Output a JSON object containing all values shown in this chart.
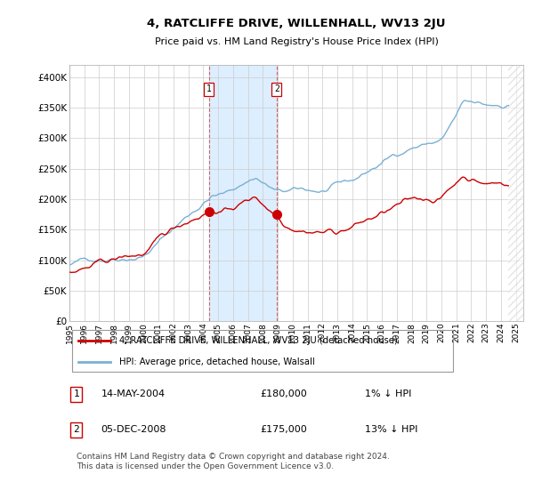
{
  "title": "4, RATCLIFFE DRIVE, WILLENHALL, WV13 2JU",
  "subtitle": "Price paid vs. HM Land Registry's House Price Index (HPI)",
  "xlim_start": 1995.0,
  "xlim_end": 2025.5,
  "ylim": [
    0,
    420000
  ],
  "yticks": [
    0,
    50000,
    100000,
    150000,
    200000,
    250000,
    300000,
    350000,
    400000
  ],
  "ytick_labels": [
    "£0",
    "£50K",
    "£100K",
    "£150K",
    "£200K",
    "£250K",
    "£300K",
    "£350K",
    "£400K"
  ],
  "transaction1_date": 2004.37,
  "transaction1_price": 180000,
  "transaction2_date": 2008.92,
  "transaction2_price": 175000,
  "line_color_property": "#cc0000",
  "line_color_hpi": "#7ab0d4",
  "legend_property": "4, RATCLIFFE DRIVE, WILLENHALL, WV13 2JU (detached house)",
  "legend_hpi": "HPI: Average price, detached house, Walsall",
  "background_color": "#ffffff",
  "grid_color": "#cccccc",
  "shade_color": "#ddeeff",
  "hatch_start": 2024.5,
  "footnote": "Contains HM Land Registry data © Crown copyright and database right 2024.\nThis data is licensed under the Open Government Licence v3.0.",
  "xticks": [
    1995,
    1996,
    1997,
    1998,
    1999,
    2000,
    2001,
    2002,
    2003,
    2004,
    2005,
    2006,
    2007,
    2008,
    2009,
    2010,
    2011,
    2012,
    2013,
    2014,
    2015,
    2016,
    2017,
    2018,
    2019,
    2020,
    2021,
    2022,
    2023,
    2024,
    2025
  ]
}
